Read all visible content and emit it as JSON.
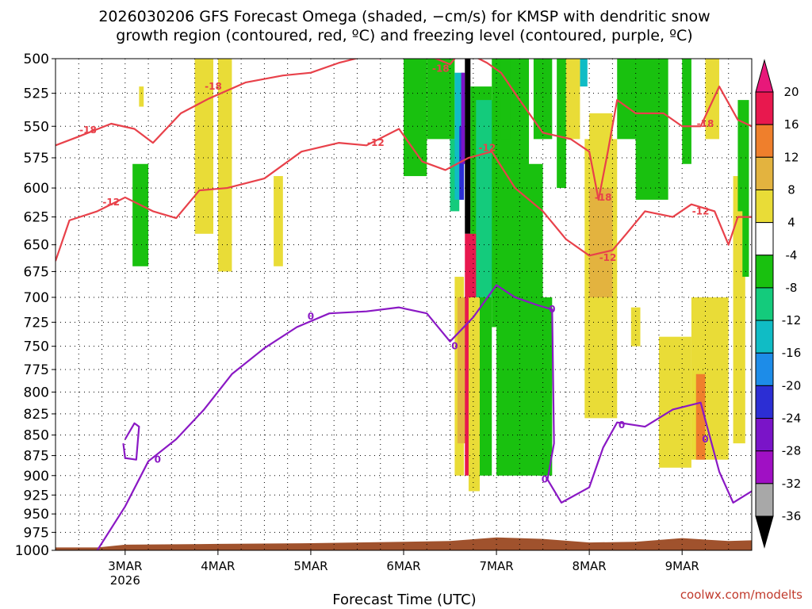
{
  "title": {
    "line1": "2026030206 GFS Forecast Omega (shaded, −cm/s) for KMSP with dendritic snow",
    "line2": "growth region (contoured, red, ºC) and freezing level (contoured, purple, ºC)"
  },
  "x_axis_title": "Forecast Time (UTC)",
  "credit": "coolwx.com/modelts",
  "chart_data": {
    "type": "heatmap",
    "x_axis": {
      "unit": "forecast time (UTC)",
      "range_days": [
        2.25,
        9.75
      ],
      "ticks": [
        {
          "day": 3,
          "label": "3MAR",
          "sublabel": "2026"
        },
        {
          "day": 4,
          "label": "4MAR",
          "sublabel": ""
        },
        {
          "day": 5,
          "label": "5MAR",
          "sublabel": ""
        },
        {
          "day": 6,
          "label": "6MAR",
          "sublabel": ""
        },
        {
          "day": 7,
          "label": "7MAR",
          "sublabel": ""
        },
        {
          "day": 8,
          "label": "8MAR",
          "sublabel": ""
        },
        {
          "day": 9,
          "label": "9MAR",
          "sublabel": ""
        }
      ]
    },
    "y_axis": {
      "unit": "hPa",
      "scale": "log",
      "inverted": true,
      "range": [
        1000,
        500
      ],
      "ticks": [
        500,
        525,
        550,
        575,
        600,
        625,
        650,
        675,
        700,
        725,
        750,
        775,
        800,
        825,
        850,
        875,
        900,
        925,
        950,
        975,
        1000
      ]
    },
    "grid": "dotted",
    "colorbar": {
      "labels": [
        20,
        16,
        12,
        8,
        4,
        -4,
        -8,
        -12,
        -16,
        -20,
        -24,
        -28,
        -32,
        -36
      ],
      "colors": [
        "#e8184e",
        "#ef7f2c",
        "#e3b33f",
        "#e9dc37",
        "#ffffff",
        "#19c10f",
        "#14cb7c",
        "#10bcc5",
        "#1d8ce8",
        "#2c2ed4",
        "#7a14c8",
        "#a010c4",
        "#a8a8a8"
      ],
      "top_arrow_color": "#e8187a",
      "bottom_arrow_color": "#000000"
    },
    "omega_color_scale": {
      "thresholds": [
        -36,
        -32,
        -28,
        -24,
        -20,
        -16,
        -12,
        -8,
        -4,
        4,
        8,
        12,
        16,
        20
      ],
      "colors": [
        "#000000",
        "#a8a8a8",
        "#a010c4",
        "#7a14c8",
        "#2c2ed4",
        "#1d8ce8",
        "#10bcc5",
        "#14cb7c",
        "#19c10f",
        "#ffffff",
        "#e9dc37",
        "#e3b33f",
        "#ef7f2c",
        "#e8184e",
        "#e8187a"
      ]
    },
    "omega_regions": [
      {
        "value": 5,
        "t": [
          3.75,
          3.95
        ],
        "p": [
          500,
          640
        ]
      },
      {
        "value": 5,
        "t": [
          4.0,
          4.15
        ],
        "p": [
          500,
          675
        ]
      },
      {
        "value": 5,
        "t": [
          4.6,
          4.7
        ],
        "p": [
          590,
          670
        ]
      },
      {
        "value": 5,
        "t": [
          3.15,
          3.2
        ],
        "p": [
          520,
          535
        ]
      },
      {
        "value": -6,
        "t": [
          3.08,
          3.25
        ],
        "p": [
          580,
          670
        ]
      },
      {
        "value": -6,
        "t": [
          6.0,
          6.25
        ],
        "p": [
          500,
          590
        ]
      },
      {
        "value": -6,
        "t": [
          6.25,
          6.55
        ],
        "p": [
          500,
          560
        ]
      },
      {
        "value": -10,
        "t": [
          6.5,
          6.6
        ],
        "p": [
          560,
          620
        ]
      },
      {
        "value": -14,
        "t": [
          6.55,
          6.65
        ],
        "p": [
          510,
          610
        ]
      },
      {
        "value": -22,
        "t": [
          6.6,
          6.65
        ],
        "p": [
          550,
          610
        ]
      },
      {
        "value": -26,
        "t": [
          6.62,
          6.66
        ],
        "p": [
          510,
          580
        ]
      },
      {
        "value": -40,
        "t": [
          6.66,
          6.72
        ],
        "p": [
          500,
          640
        ]
      },
      {
        "value": -6,
        "t": [
          6.72,
          6.95
        ],
        "p": [
          520,
          900
        ]
      },
      {
        "value": -10,
        "t": [
          6.78,
          7.0
        ],
        "p": [
          530,
          700
        ]
      },
      {
        "value": -6,
        "t": [
          6.95,
          7.35
        ],
        "p": [
          500,
          730
        ]
      },
      {
        "value": -6,
        "t": [
          7.0,
          7.5
        ],
        "p": [
          580,
          900
        ]
      },
      {
        "value": -6,
        "t": [
          7.45,
          7.6
        ],
        "p": [
          700,
          900
        ]
      },
      {
        "value": 6,
        "t": [
          6.55,
          6.65
        ],
        "p": [
          680,
          900
        ]
      },
      {
        "value": 10,
        "t": [
          6.58,
          6.7
        ],
        "p": [
          700,
          860
        ]
      },
      {
        "value": 18,
        "t": [
          6.66,
          6.78
        ],
        "p": [
          640,
          900
        ]
      },
      {
        "value": 6,
        "t": [
          6.7,
          6.82
        ],
        "p": [
          700,
          920
        ]
      },
      {
        "value": -6,
        "t": [
          7.05,
          7.15
        ],
        "p": [
          500,
          560
        ]
      },
      {
        "value": -6,
        "t": [
          7.4,
          7.6
        ],
        "p": [
          500,
          560
        ]
      },
      {
        "value": -6,
        "t": [
          7.65,
          7.75
        ],
        "p": [
          500,
          600
        ]
      },
      {
        "value": -14,
        "t": [
          7.9,
          7.98
        ],
        "p": [
          500,
          520
        ]
      },
      {
        "value": 5,
        "t": [
          7.75,
          7.9
        ],
        "p": [
          500,
          560
        ]
      },
      {
        "value": 6,
        "t": [
          7.95,
          8.3
        ],
        "p": [
          560,
          830
        ]
      },
      {
        "value": 10,
        "t": [
          8.0,
          8.25
        ],
        "p": [
          600,
          700
        ]
      },
      {
        "value": 6,
        "t": [
          8.0,
          8.25
        ],
        "p": [
          540,
          600
        ]
      },
      {
        "value": -6,
        "t": [
          8.3,
          8.55
        ],
        "p": [
          500,
          560
        ]
      },
      {
        "value": -6,
        "t": [
          8.5,
          8.85
        ],
        "p": [
          500,
          610
        ]
      },
      {
        "value": 5,
        "t": [
          8.45,
          8.55
        ],
        "p": [
          710,
          750
        ]
      },
      {
        "value": 5,
        "t": [
          8.75,
          9.1
        ],
        "p": [
          740,
          890
        ]
      },
      {
        "value": 5,
        "t": [
          9.1,
          9.5
        ],
        "p": [
          700,
          880
        ]
      },
      {
        "value": 12,
        "t": [
          9.15,
          9.25
        ],
        "p": [
          780,
          880
        ]
      },
      {
        "value": -6,
        "t": [
          9.0,
          9.1
        ],
        "p": [
          500,
          580
        ]
      },
      {
        "value": 5,
        "t": [
          9.25,
          9.4
        ],
        "p": [
          500,
          560
        ]
      },
      {
        "value": 5,
        "t": [
          9.55,
          9.68
        ],
        "p": [
          590,
          860
        ]
      },
      {
        "value": -6,
        "t": [
          9.6,
          9.72
        ],
        "p": [
          530,
          680
        ]
      },
      {
        "value": 5,
        "t": [
          9.55,
          9.65
        ],
        "p": [
          620,
          700
        ]
      }
    ],
    "terrain": {
      "color": "#a0522d",
      "points": [
        [
          2.25,
          996
        ],
        [
          2.7,
          996
        ],
        [
          3.0,
          992
        ],
        [
          4.0,
          991
        ],
        [
          5.0,
          990
        ],
        [
          6.0,
          988
        ],
        [
          6.5,
          987
        ],
        [
          7.0,
          982
        ],
        [
          7.5,
          984
        ],
        [
          8.0,
          989
        ],
        [
          8.5,
          988
        ],
        [
          9.0,
          983
        ],
        [
          9.5,
          987
        ],
        [
          9.75,
          986
        ]
      ]
    },
    "contours": [
      {
        "level": -18,
        "color": "#e8414a",
        "label_points": [
          [
            2.6,
            553
          ],
          [
            3.95,
            520
          ],
          [
            6.4,
            507
          ],
          [
            9.25,
            548
          ],
          [
            8.15,
            608
          ]
        ],
        "points": [
          [
            2.25,
            565
          ],
          [
            2.5,
            558
          ],
          [
            2.85,
            548
          ],
          [
            3.1,
            552
          ],
          [
            3.3,
            563
          ],
          [
            3.6,
            540
          ],
          [
            3.9,
            529
          ],
          [
            4.3,
            517
          ],
          [
            4.7,
            512
          ],
          [
            5.0,
            510
          ],
          [
            5.3,
            503
          ],
          [
            5.6,
            498
          ],
          [
            6.1,
            496
          ],
          [
            6.35,
            500
          ],
          [
            6.5,
            504
          ],
          [
            6.6,
            496
          ],
          [
            6.75,
            498
          ],
          [
            6.9,
            503
          ],
          [
            7.05,
            510
          ],
          [
            7.25,
            530
          ],
          [
            7.5,
            555
          ],
          [
            7.8,
            560
          ],
          [
            8.0,
            570
          ],
          [
            8.1,
            610
          ],
          [
            8.2,
            570
          ],
          [
            8.3,
            530
          ],
          [
            8.5,
            540
          ],
          [
            8.8,
            540
          ],
          [
            9.0,
            550
          ],
          [
            9.2,
            550
          ],
          [
            9.4,
            520
          ],
          [
            9.6,
            545
          ],
          [
            9.75,
            550
          ]
        ]
      },
      {
        "level": -12,
        "color": "#e8414a",
        "label_points": [
          [
            2.85,
            612
          ],
          [
            5.7,
            563
          ],
          [
            6.9,
            567
          ],
          [
            8.2,
            662
          ],
          [
            9.2,
            620
          ]
        ],
        "points": [
          [
            2.25,
            665
          ],
          [
            2.4,
            628
          ],
          [
            2.7,
            620
          ],
          [
            3.0,
            608
          ],
          [
            3.3,
            620
          ],
          [
            3.55,
            626
          ],
          [
            3.8,
            602
          ],
          [
            4.1,
            600
          ],
          [
            4.5,
            592
          ],
          [
            4.9,
            570
          ],
          [
            5.3,
            563
          ],
          [
            5.6,
            565
          ],
          [
            5.95,
            552
          ],
          [
            6.2,
            578
          ],
          [
            6.45,
            585
          ],
          [
            6.7,
            575
          ],
          [
            6.95,
            570
          ],
          [
            7.2,
            600
          ],
          [
            7.5,
            620
          ],
          [
            7.75,
            645
          ],
          [
            8.0,
            660
          ],
          [
            8.25,
            655
          ],
          [
            8.4,
            640
          ],
          [
            8.6,
            620
          ],
          [
            8.9,
            625
          ],
          [
            9.1,
            614
          ],
          [
            9.35,
            620
          ],
          [
            9.5,
            650
          ],
          [
            9.6,
            625
          ],
          [
            9.75,
            625
          ]
        ]
      },
      {
        "level": 0,
        "color": "#8a18c4",
        "label_points": [
          [
            3.35,
            880
          ],
          [
            5.0,
            719
          ],
          [
            6.55,
            750
          ],
          [
            7.6,
            712
          ],
          [
            8.35,
            838
          ],
          [
            9.25,
            855
          ],
          [
            7.52,
            905
          ]
        ],
        "points": [
          [
            2.7,
            1000
          ],
          [
            3.0,
            940
          ],
          [
            3.25,
            882
          ],
          [
            3.55,
            855
          ],
          [
            3.85,
            820
          ],
          [
            4.15,
            780
          ],
          [
            4.5,
            752
          ],
          [
            4.85,
            730
          ],
          [
            5.2,
            716
          ],
          [
            5.6,
            714
          ],
          [
            5.95,
            710
          ],
          [
            6.25,
            716
          ],
          [
            6.5,
            745
          ],
          [
            6.75,
            720
          ],
          [
            7.0,
            688
          ],
          [
            7.2,
            700
          ],
          [
            7.45,
            708
          ],
          [
            7.6,
            712
          ],
          [
            7.62,
            860
          ],
          [
            7.55,
            905
          ],
          [
            7.7,
            935
          ],
          [
            8.0,
            915
          ],
          [
            8.15,
            865
          ],
          [
            8.3,
            835
          ],
          [
            8.6,
            840
          ],
          [
            8.9,
            820
          ],
          [
            9.2,
            812
          ],
          [
            9.4,
            895
          ],
          [
            9.55,
            935
          ],
          [
            9.75,
            920
          ]
        ]
      },
      {
        "level": 0,
        "color": "#8a18c4",
        "label_points": [],
        "points": [
          [
            3.0,
            855
          ],
          [
            3.1,
            836
          ],
          [
            3.15,
            840
          ],
          [
            3.12,
            880
          ],
          [
            3.0,
            878
          ],
          [
            2.98,
            860
          ]
        ]
      }
    ]
  }
}
